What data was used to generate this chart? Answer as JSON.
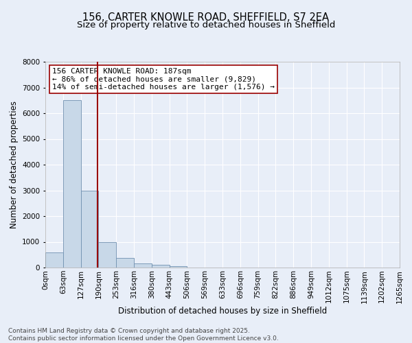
{
  "title1": "156, CARTER KNOWLE ROAD, SHEFFIELD, S7 2EA",
  "title2": "Size of property relative to detached houses in Sheffield",
  "xlabel": "Distribution of detached houses by size in Sheffield",
  "ylabel": "Number of detached properties",
  "bar_values": [
    600,
    6500,
    3000,
    1000,
    380,
    160,
    100,
    60,
    0,
    0,
    0,
    0,
    0,
    0,
    0,
    0,
    0,
    0,
    0,
    0
  ],
  "bin_labels": [
    "0sqm",
    "63sqm",
    "127sqm",
    "190sqm",
    "253sqm",
    "316sqm",
    "380sqm",
    "443sqm",
    "506sqm",
    "569sqm",
    "633sqm",
    "696sqm",
    "759sqm",
    "822sqm",
    "886sqm",
    "949sqm",
    "1012sqm",
    "1075sqm",
    "1139sqm",
    "1202sqm",
    "1265sqm"
  ],
  "bar_color": "#c8d8e8",
  "bar_edge_color": "#7090b0",
  "background_color": "#e8eef8",
  "grid_color": "#ffffff",
  "vline_x": 2.93,
  "vline_color": "#990000",
  "annotation_text": "156 CARTER KNOWLE ROAD: 187sqm\n← 86% of detached houses are smaller (9,829)\n14% of semi-detached houses are larger (1,576) →",
  "annotation_box_color": "#ffffff",
  "annotation_box_edge": "#990000",
  "ylim": [
    0,
    8000
  ],
  "yticks": [
    0,
    1000,
    2000,
    3000,
    4000,
    5000,
    6000,
    7000,
    8000
  ],
  "footer_text": "Contains HM Land Registry data © Crown copyright and database right 2025.\nContains public sector information licensed under the Open Government Licence v3.0.",
  "title_fontsize": 10.5,
  "subtitle_fontsize": 9.5,
  "axis_label_fontsize": 8.5,
  "tick_fontsize": 7.5,
  "annotation_fontsize": 8,
  "footer_fontsize": 6.5
}
